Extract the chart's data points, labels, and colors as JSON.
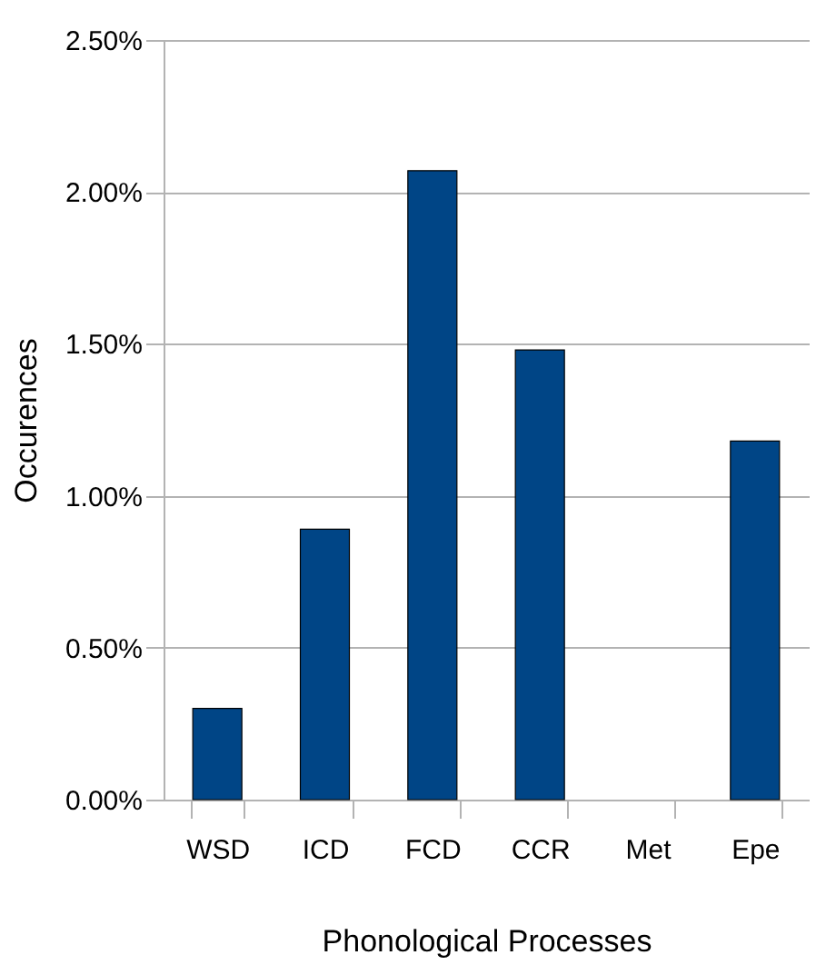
{
  "chart_data": {
    "type": "bar",
    "xlabel": "Phonological Processes",
    "ylabel": "Occurences",
    "categories": [
      "WSD",
      "ICD",
      "FCD",
      "CCR",
      "Met",
      "Epe"
    ],
    "values": [
      0.3,
      0.89,
      2.07,
      1.48,
      0,
      1.18
    ],
    "color": "#004586",
    "ylim": [
      0,
      2.5
    ],
    "yticks": [
      {
        "value": 0,
        "label": "0.00%"
      },
      {
        "value": 0.5,
        "label": "0.50%"
      },
      {
        "value": 1,
        "label": "1.00%"
      },
      {
        "value": 1.5,
        "label": "1.50%"
      },
      {
        "value": 2,
        "label": "2.00%"
      },
      {
        "value": 2.5,
        "label": "2.50%"
      }
    ],
    "grid": "y"
  }
}
